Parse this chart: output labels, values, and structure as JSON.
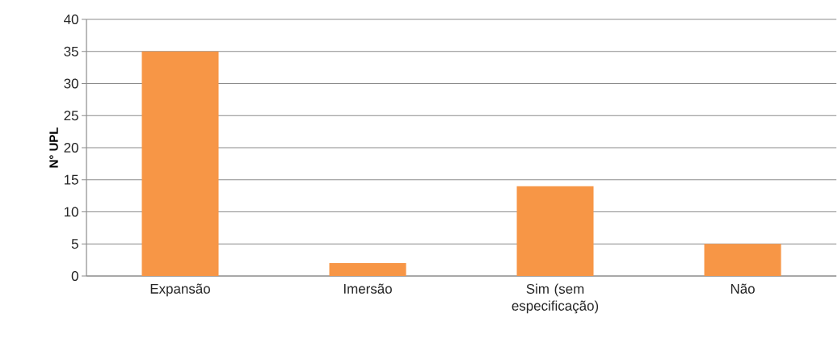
{
  "chart_data": {
    "type": "bar",
    "ylabel": "N° UPL",
    "categories": [
      "Expansão",
      "Imersão",
      "Sim (sem especificação)",
      "Não"
    ],
    "values": [
      35,
      2,
      14,
      5
    ],
    "color": "#f79646",
    "ylim": [
      0,
      40
    ],
    "yticks": [
      0,
      5,
      10,
      15,
      20,
      25,
      30,
      35,
      40
    ],
    "grid": "y"
  }
}
